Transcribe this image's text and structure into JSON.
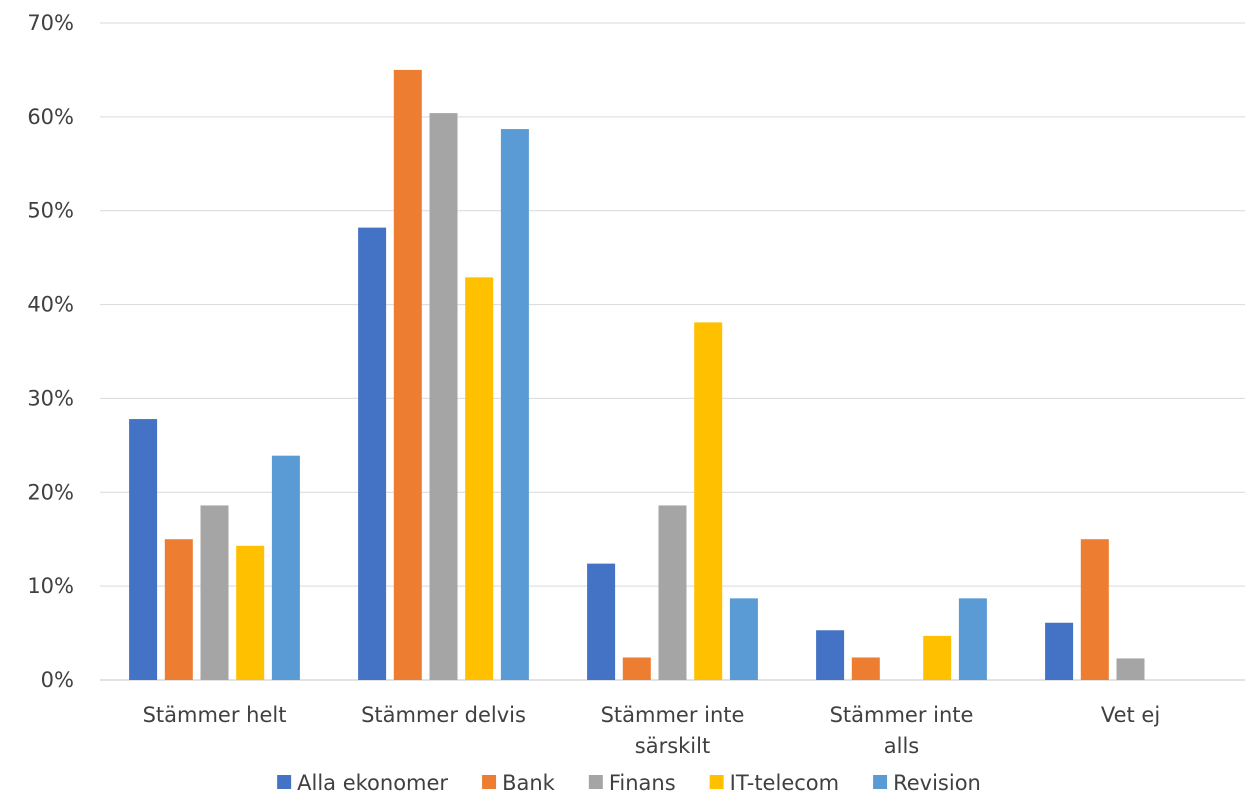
{
  "chart_data": {
    "type": "bar",
    "categories": [
      [
        "Stämmer helt"
      ],
      [
        "Stämmer delvis"
      ],
      [
        "Stämmer inte",
        "särskilt"
      ],
      [
        "Stämmer inte",
        "alls"
      ],
      [
        "Vet ej"
      ]
    ],
    "series": [
      {
        "name": "Alla ekonomer",
        "color": "#4472C4",
        "values": [
          27.8,
          48.2,
          12.4,
          5.3,
          6.1
        ]
      },
      {
        "name": "Bank",
        "color": "#ED7D31",
        "values": [
          15.0,
          65.0,
          2.4,
          2.4,
          15.0
        ]
      },
      {
        "name": "Finans",
        "color": "#A5A5A5",
        "values": [
          18.6,
          60.4,
          18.6,
          null,
          2.3
        ]
      },
      {
        "name": "IT-telecom",
        "color": "#FFC000",
        "values": [
          14.3,
          42.9,
          38.1,
          4.7,
          null
        ]
      },
      {
        "name": "Revision",
        "color": "#5B9BD5",
        "values": [
          23.9,
          58.7,
          8.7,
          8.7,
          null
        ]
      }
    ],
    "y_ticks": [
      "0%",
      "10%",
      "20%",
      "30%",
      "40%",
      "50%",
      "60%",
      "70%"
    ],
    "ylim": [
      0,
      70
    ],
    "grid": true,
    "legend_position": "bottom"
  }
}
